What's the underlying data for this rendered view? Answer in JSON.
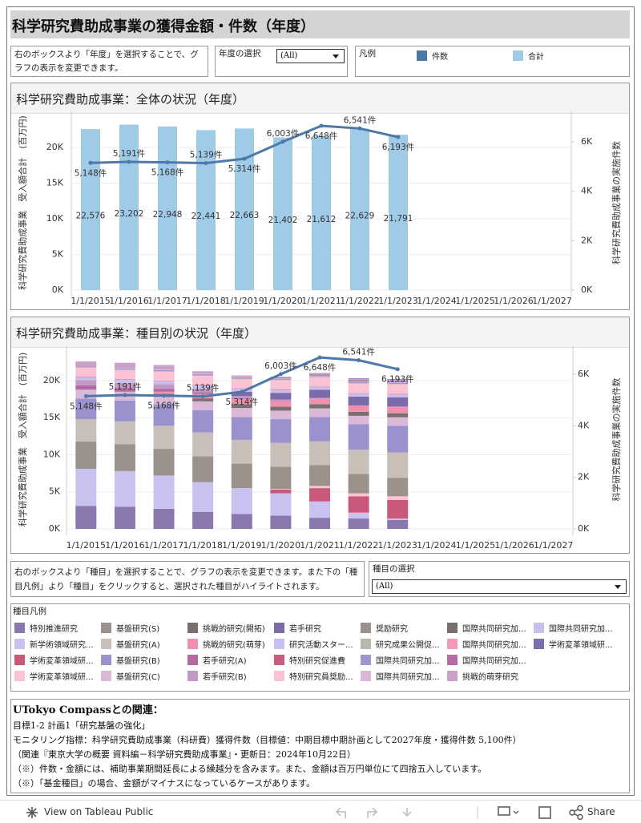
{
  "header": {
    "title": "科学研究費助成事業の獲得金額・件数（年度）"
  },
  "controls": {
    "year_info": "右のボックスより「年度」を選択することで、グラフの表示を変更できます。",
    "year_label": "年度の選択",
    "year_value": "(All)",
    "legend_title": "凡例",
    "kind_info": "右のボックスより「種目」を選択することで、グラフの表示を変更できます。また下の「種目凡例」より「種目」をクリックすると、選択された種目がハイライトされます。",
    "kind_label": "種目の選択",
    "kind_value": "(All)"
  },
  "chart_data": [
    {
      "type": "combo",
      "title": "科学研究費助成事業：全体の状況（年度）",
      "y_label": "科学研究費助成事業　受入額合計　(百万円)",
      "y2_label": "科学研究費助成事業の実施件数",
      "categories": [
        "1/1/2015",
        "1/1/2016",
        "1/1/2017",
        "1/1/2018",
        "1/1/2019",
        "1/1/2020",
        "1/1/2021",
        "1/1/2022",
        "1/1/2023",
        "1/1/2024",
        "1/1/2025",
        "1/1/2026",
        "1/1/2027"
      ],
      "ylim": [
        0,
        24500
      ],
      "yticks": [
        {
          "value": 0,
          "label": "0K"
        },
        {
          "value": 5000,
          "label": "5K"
        },
        {
          "value": 10000,
          "label": "10K"
        },
        {
          "value": 15000,
          "label": "15K"
        },
        {
          "value": 20000,
          "label": "20K"
        }
      ],
      "y2lim": [
        0,
        7070
      ],
      "y2ticks": [
        {
          "value": 0,
          "label": "0K"
        },
        {
          "value": 2000,
          "label": "2K"
        },
        {
          "value": 4000,
          "label": "4K"
        },
        {
          "value": 6000,
          "label": "6K"
        }
      ],
      "grid": true,
      "series": [
        {
          "name": "件数",
          "type": "line",
          "axis": "y2",
          "color": "#4e79a7",
          "values": [
            5148,
            5191,
            5168,
            5139,
            5314,
            6003,
            6648,
            6541,
            6193,
            null,
            null,
            null,
            null
          ],
          "value_labels": [
            "5,148件",
            "5,191件",
            "5,168件",
            "5,139件",
            "5,314件",
            "6,003件",
            "6,648件",
            "6,541件",
            "6,193件",
            null,
            null,
            null,
            null
          ]
        },
        {
          "name": "合計",
          "type": "bar",
          "color": "#a0cbe8",
          "values": [
            22576,
            23202,
            22948,
            22441,
            22663,
            21402,
            21612,
            22629,
            21791,
            null,
            null,
            null,
            null
          ],
          "value_labels": [
            "22,576",
            "23,202",
            "22,948",
            "22,441",
            "22,663",
            "21,402",
            "21,612",
            "22,629",
            "21,791",
            null,
            null,
            null,
            null
          ]
        }
      ]
    },
    {
      "type": "combo",
      "stacked": true,
      "title": "科学研究費助成事業：種目別の状況（年度）",
      "y_label": "科学研究費助成事業　受入額合計　(百万円)",
      "y2_label": "科学研究費助成事業の実施件数",
      "categories": [
        "1/1/2015",
        "1/1/2016",
        "1/1/2017",
        "1/1/2018",
        "1/1/2019",
        "1/1/2020",
        "1/1/2021",
        "1/1/2022",
        "1/1/2023",
        "1/1/2024",
        "1/1/2025",
        "1/1/2026",
        "1/1/2027"
      ],
      "ylim": [
        0,
        24100
      ],
      "yticks": [
        {
          "value": 0,
          "label": "0K"
        },
        {
          "value": 5000,
          "label": "5K"
        },
        {
          "value": 10000,
          "label": "10K"
        },
        {
          "value": 15000,
          "label": "15K"
        },
        {
          "value": 20000,
          "label": "20K"
        }
      ],
      "y2lim": [
        0,
        6930
      ],
      "y2ticks": [
        {
          "value": 0,
          "label": "0K"
        },
        {
          "value": 2000,
          "label": "2K"
        },
        {
          "value": 4000,
          "label": "4K"
        },
        {
          "value": 6000,
          "label": "6K"
        }
      ],
      "grid": true,
      "legend_title": "種目凡例",
      "line": {
        "axis": "y2",
        "color": "#4e79a7",
        "values": [
          5148,
          5191,
          5168,
          5139,
          5314,
          6003,
          6648,
          6541,
          6193,
          null,
          null,
          null,
          null
        ],
        "value_labels": [
          "5,148件",
          "5,191件",
          "5,168件",
          "5,139件",
          "5,314件",
          "6,003件",
          "6,648件",
          "6,541件",
          "6,193件",
          null,
          null,
          null,
          null
        ]
      },
      "series": [
        {
          "name": "特別推進研究",
          "color": "#8a77ad",
          "values": [
            3100,
            3000,
            2700,
            2300,
            2000,
            1800,
            1500,
            1400,
            1200,
            null,
            null,
            null,
            null
          ]
        },
        {
          "name": "新学術領域研究...",
          "color": "#c9c1f0",
          "values": [
            5000,
            4800,
            4500,
            4000,
            3500,
            3000,
            2200,
            800,
            200,
            null,
            null,
            null,
            null
          ]
        },
        {
          "name": "学術変革領域研...",
          "color": "#c9597a",
          "values": [
            0,
            0,
            0,
            0,
            0,
            500,
            1800,
            2200,
            2500,
            null,
            null,
            null,
            null
          ]
        },
        {
          "name": "学術変革領域研...",
          "color": "#fbc3d3",
          "values": [
            0,
            0,
            0,
            0,
            0,
            100,
            300,
            400,
            500,
            null,
            null,
            null,
            null
          ]
        },
        {
          "name": "基盤研究(S)",
          "color": "#9c928c",
          "values": [
            3700,
            3600,
            3600,
            3500,
            3300,
            3000,
            2800,
            2600,
            2500,
            null,
            null,
            null,
            null
          ]
        },
        {
          "name": "基盤研究(A)",
          "color": "#c8bfb8",
          "values": [
            3000,
            3100,
            3100,
            3200,
            3200,
            3200,
            3200,
            3300,
            3400,
            null,
            null,
            null,
            null
          ]
        },
        {
          "name": "基盤研究(B)",
          "color": "#9a92cc",
          "values": [
            2776,
            2800,
            2900,
            3000,
            3100,
            3200,
            3300,
            3400,
            3600,
            null,
            null,
            null,
            null
          ]
        },
        {
          "name": "基盤研究(C)",
          "color": "#dbb8d8",
          "values": [
            1200,
            1200,
            1200,
            1200,
            1200,
            1150,
            1150,
            1150,
            1150,
            null,
            null,
            null,
            null
          ]
        },
        {
          "name": "挑戦的研究(開拓)",
          "color": "#79706e",
          "values": [
            0,
            0,
            200,
            400,
            500,
            550,
            550,
            550,
            550,
            null,
            null,
            null,
            null
          ]
        },
        {
          "name": "挑戦的研究(萌芽)",
          "color": "#f18fb0",
          "values": [
            0,
            0,
            300,
            600,
            700,
            750,
            800,
            850,
            900,
            null,
            null,
            null,
            null
          ]
        },
        {
          "name": "若手研究(A)",
          "color": "#b26aa3",
          "values": [
            600,
            500,
            400,
            250,
            100,
            50,
            0,
            0,
            0,
            null,
            null,
            null,
            null
          ]
        },
        {
          "name": "若手研究(B)",
          "color": "#c39ac6",
          "values": [
            700,
            700,
            600,
            500,
            300,
            150,
            50,
            0,
            0,
            null,
            null,
            null,
            null
          ]
        },
        {
          "name": "若手研究",
          "color": "#7c6ba8",
          "values": [
            0,
            0,
            0,
            0,
            600,
            900,
            1100,
            1200,
            1250,
            null,
            null,
            null,
            null
          ]
        },
        {
          "name": "研究活動スター...",
          "color": "#c7bff0",
          "values": [
            400,
            400,
            400,
            400,
            400,
            400,
            400,
            400,
            400,
            null,
            null,
            null,
            null
          ]
        },
        {
          "name": "特別研究促進費",
          "color": "#c95d7c",
          "values": [
            50,
            50,
            50,
            50,
            50,
            50,
            50,
            50,
            50,
            null,
            null,
            null,
            null
          ]
        },
        {
          "name": "特別研究員奨励...",
          "color": "#fbc2d4",
          "values": [
            1200,
            1250,
            1250,
            1250,
            1250,
            1250,
            1250,
            1300,
            1300,
            null,
            null,
            null,
            null
          ]
        },
        {
          "name": "奨励研究",
          "color": "#9c9190",
          "values": [
            20,
            20,
            20,
            20,
            20,
            20,
            20,
            20,
            20,
            null,
            null,
            null,
            null
          ]
        },
        {
          "name": "研究成果公開促...",
          "color": "#bbb5b0",
          "values": [
            30,
            30,
            30,
            30,
            30,
            30,
            30,
            30,
            30,
            null,
            null,
            null,
            null
          ]
        },
        {
          "name": "国際共同研究加...",
          "color": "#9e96d0",
          "values": [
            0,
            100,
            150,
            150,
            150,
            100,
            100,
            150,
            150,
            null,
            null,
            null,
            null
          ]
        },
        {
          "name": "国際共同研究加...",
          "color": "#dbb6d6",
          "values": [
            0,
            50,
            100,
            100,
            100,
            100,
            100,
            100,
            100,
            null,
            null,
            null,
            null
          ]
        },
        {
          "name": "国際共同研究加...",
          "color": "#79706e",
          "values": [
            0,
            0,
            0,
            0,
            50,
            100,
            100,
            100,
            100,
            null,
            null,
            null,
            null
          ]
        },
        {
          "name": "国際共同研究加...",
          "color": "#f29ab8",
          "values": [
            0,
            0,
            0,
            0,
            50,
            50,
            50,
            50,
            50,
            null,
            null,
            null,
            null
          ]
        },
        {
          "name": "国際共同研究加...",
          "color": "#b86ca6",
          "values": [
            0,
            0,
            0,
            0,
            0,
            0,
            50,
            100,
            100,
            null,
            null,
            null,
            null
          ]
        },
        {
          "name": "挑戦的萌芽研究",
          "color": "#c8a0c8",
          "values": [
            800,
            800,
            600,
            300,
            100,
            50,
            0,
            0,
            0,
            null,
            null,
            null,
            null
          ]
        },
        {
          "name": "国際共同研究加...",
          "color": "#c8c0ef",
          "values": [
            0,
            0,
            0,
            0,
            0,
            0,
            50,
            80,
            80,
            null,
            null,
            null,
            null
          ]
        },
        {
          "name": "学術変革領域研...",
          "color": "#7c6ea8",
          "values": [
            0,
            0,
            0,
            0,
            0,
            20,
            60,
            80,
            80,
            null,
            null,
            null,
            null
          ]
        }
      ]
    }
  ],
  "notes": {
    "title": "UTokyo  Compassとの関連：",
    "lines": [
      "目標1-2 計画1「研究基盤の強化」",
      "モニタリング指標：科学研究費助成事業（科研費）獲得件数（目標値：中期目標中期計画として2027年度・獲得件数 5,100件）",
      "（関連『東京大学の概要 資料編－科学研究費助成事業』・更新日：2024年10月22日）",
      "（※）件数・金額には、補助事業期間延長による繰越分を含みます。また、金額は百万円単位にて四捨五入しています。",
      "（※）「基金種目」の場合、金額がマイナスになっているケースがあります。"
    ]
  },
  "footer": {
    "view": "View on Tableau Public",
    "share": "Share"
  }
}
